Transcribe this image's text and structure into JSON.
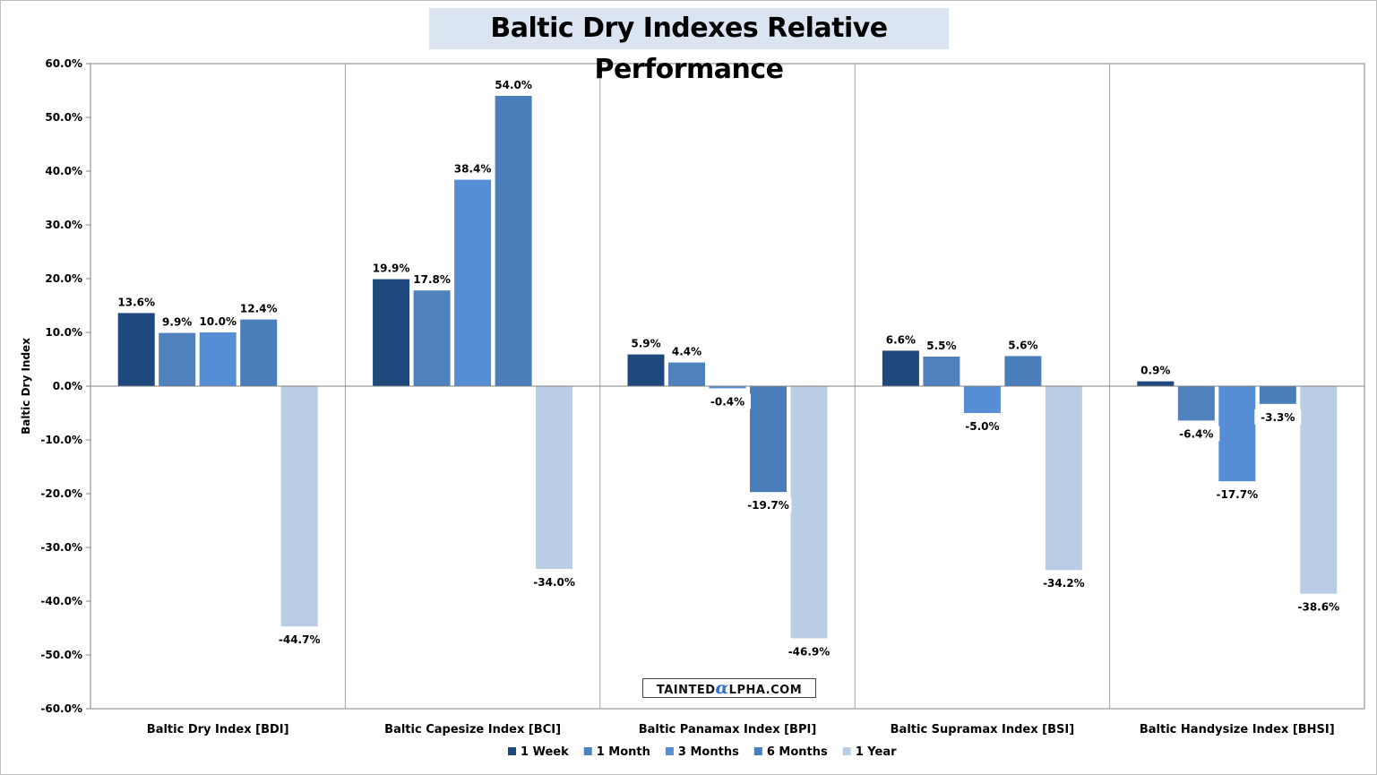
{
  "chart_data": {
    "type": "bar",
    "title": "Baltic Dry Indexes Relative Performance",
    "xlabel": "",
    "ylabel": "Baltic Dry  Index",
    "ylim": [
      -60,
      60
    ],
    "yticks": [
      60,
      50,
      40,
      30,
      20,
      10,
      0,
      -10,
      -20,
      -30,
      -40,
      -50,
      -60
    ],
    "ytick_labels": [
      "60.0%",
      "50.0%",
      "40.0%",
      "30.0%",
      "20.0%",
      "10.0%",
      "0.0%",
      "-10.0%",
      "-20.0%",
      "-30.0%",
      "-40.0%",
      "-50.0%",
      "-60.0%"
    ],
    "grid": "vertical category separators",
    "legend_position": "bottom-center",
    "categories": [
      "Baltic Dry Index [BDI]",
      "Baltic Capesize Index [BCI]",
      "Baltic Panamax Index [BPI]",
      "Baltic Supramax Index [BSI]",
      "Baltic Handysize Index [BHSI]"
    ],
    "series": [
      {
        "name": "1 Week",
        "color": "#1f497d",
        "values": [
          13.6,
          19.9,
          5.9,
          6.6,
          0.9
        ],
        "labels": [
          "13.6%",
          "19.9%",
          "5.9%",
          "6.6%",
          "0.9%"
        ]
      },
      {
        "name": "1 Month",
        "color": "#4f81bd",
        "values": [
          9.9,
          17.8,
          4.4,
          5.5,
          -6.4
        ],
        "labels": [
          "9.9%",
          "17.8%",
          "4.4%",
          "5.5%",
          "-6.4%"
        ]
      },
      {
        "name": "3 Months",
        "color": "#558ed5",
        "values": [
          10.0,
          38.4,
          -0.4,
          -5.0,
          -17.7
        ],
        "labels": [
          "10.0%",
          "38.4%",
          "-0.4%",
          "-5.0%",
          "-17.7%"
        ]
      },
      {
        "name": "6 Months",
        "color": "#4a7ebb",
        "values": [
          12.4,
          54.0,
          -19.7,
          5.6,
          -3.3
        ],
        "labels": [
          "12.4%",
          "54.0%",
          "-19.7%",
          "5.6%",
          "-3.3%"
        ]
      },
      {
        "name": "1 Year",
        "color": "#b9cde5",
        "values": [
          -44.7,
          -34.0,
          -46.9,
          -34.2,
          -38.6
        ],
        "labels": [
          "-44.7%",
          "-34.0%",
          "-46.9%",
          "-34.2%",
          "-38.6%"
        ]
      }
    ]
  },
  "watermark": {
    "pre": "TAINTED",
    "alpha": "α",
    "post": "LPHA.COM"
  }
}
